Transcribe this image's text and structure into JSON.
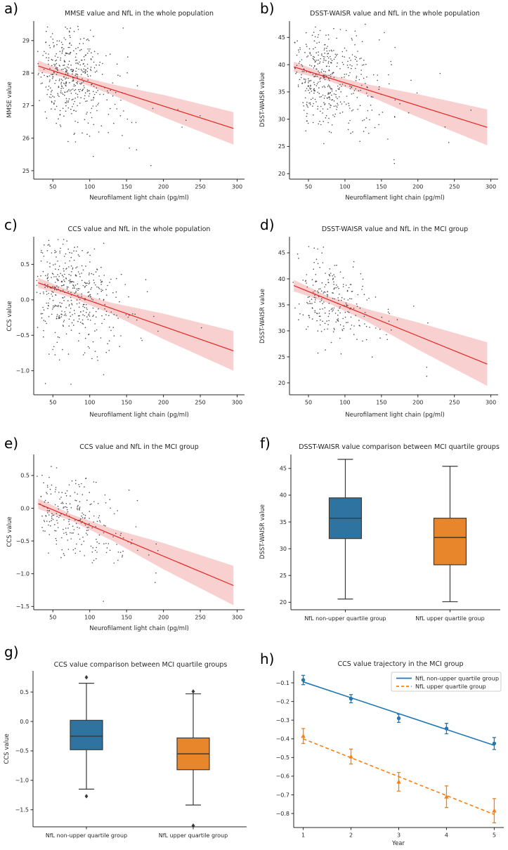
{
  "colors": {
    "background": "#ffffff",
    "regression_line": "#e42420",
    "ci_band": "#f8d0d0",
    "scatter_point": "#3b3b3b",
    "box_blue": "#2f74a0",
    "box_orange": "#e8862c",
    "traj_blue": "#1f77b4",
    "traj_orange": "#ff7f0e",
    "axis": "#262626",
    "legend_border": "#cccccc"
  },
  "chart_data": [
    {
      "panel": "a)",
      "type": "scatter-regression",
      "title": "MMSE value and NfL in the whole population",
      "xlabel": "Neurofilament light chain (pg/ml)",
      "ylabel": "MMSE value",
      "xlim": [
        24,
        310
      ],
      "ylim": [
        24.74,
        29.6
      ],
      "xtick_values": [
        50,
        100,
        150,
        200,
        250,
        300
      ],
      "xtick_labels": [
        "50",
        "100",
        "150",
        "200",
        "250",
        "300"
      ],
      "ytick_values": [
        25,
        26,
        27,
        28,
        29
      ],
      "ytick_labels": [
        "25",
        "26",
        "27",
        "28",
        "29"
      ],
      "regression": {
        "x": [
          30,
          295
        ],
        "y": [
          28.22,
          26.3
        ]
      },
      "ci": {
        "x": [
          30,
          75,
          130,
          200,
          295
        ],
        "half_width": [
          0.17,
          0.08,
          0.16,
          0.34,
          0.5
        ]
      },
      "scatter": {
        "n": 440,
        "seed": 3,
        "x_log_mu": 4.33,
        "x_log_sigma": 0.4,
        "x_min": 28,
        "x_max": 298,
        "y_noise_sd": 0.73,
        "y_min": 24.95,
        "y_max": 29.45
      }
    },
    {
      "panel": "b)",
      "type": "scatter-regression",
      "title": "DSST-WAISR value and NfL in the whole population",
      "xlabel": "Neurofilament light chain (pg/ml)",
      "ylabel": "DSST-WAISR value",
      "xlim": [
        24,
        310
      ],
      "ylim": [
        19.0,
        48.0
      ],
      "xtick_values": [
        50,
        100,
        150,
        200,
        250,
        300
      ],
      "xtick_labels": [
        "50",
        "100",
        "150",
        "200",
        "250",
        "300"
      ],
      "ytick_values": [
        20,
        25,
        30,
        35,
        40,
        45
      ],
      "ytick_labels": [
        "20",
        "25",
        "30",
        "35",
        "40",
        "45"
      ],
      "regression": {
        "x": [
          30,
          295
        ],
        "y": [
          39.6,
          28.5
        ]
      },
      "ci": {
        "x": [
          30,
          75,
          130,
          200,
          295
        ],
        "half_width": [
          0.95,
          0.55,
          1.0,
          2.1,
          3.3
        ]
      },
      "scatter": {
        "n": 440,
        "seed": 5,
        "x_log_mu": 4.33,
        "x_log_sigma": 0.4,
        "x_min": 28,
        "x_max": 298,
        "y_noise_sd": 4.3,
        "y_min": 20.7,
        "y_max": 47.5
      }
    },
    {
      "panel": "c)",
      "type": "scatter-regression",
      "title": "CCS value and NfL in the whole population",
      "xlabel": "Neurofilament light chain (pg/ml)",
      "ylabel": "CCS value",
      "xlim": [
        24,
        310
      ],
      "ylim": [
        -1.34,
        0.89
      ],
      "xtick_values": [
        50,
        100,
        150,
        200,
        250,
        300
      ],
      "xtick_labels": [
        "50",
        "100",
        "150",
        "200",
        "250",
        "300"
      ],
      "ytick_values": [
        -1.0,
        -0.5,
        0.0,
        0.5
      ],
      "ytick_labels": [
        "−1.0",
        "−0.5",
        "0.0",
        "0.5"
      ],
      "regression": {
        "x": [
          30,
          295
        ],
        "y": [
          0.24,
          -0.72
        ]
      },
      "ci": {
        "x": [
          30,
          75,
          130,
          200,
          295
        ],
        "half_width": [
          0.07,
          0.045,
          0.08,
          0.18,
          0.28
        ]
      },
      "scatter": {
        "n": 440,
        "seed": 9,
        "x_log_mu": 4.33,
        "x_log_sigma": 0.4,
        "x_min": 28,
        "x_max": 298,
        "y_noise_sd": 0.38,
        "y_min": -1.27,
        "y_max": 0.88
      }
    },
    {
      "panel": "d)",
      "type": "scatter-regression",
      "title": "DSST-WAISR value and NfL in the MCI group",
      "xlabel": "Neurofilament light chain (pg/ml)",
      "ylabel": "DSST-WAISR value",
      "xlim": [
        24,
        310
      ],
      "ylim": [
        17.7,
        48.1
      ],
      "xtick_values": [
        50,
        100,
        150,
        200,
        250,
        300
      ],
      "xtick_labels": [
        "50",
        "100",
        "150",
        "200",
        "250",
        "300"
      ],
      "ytick_values": [
        20,
        25,
        30,
        35,
        40,
        45
      ],
      "ytick_labels": [
        "20",
        "25",
        "30",
        "35",
        "40",
        "45"
      ],
      "regression": {
        "x": [
          30,
          295
        ],
        "y": [
          38.7,
          23.6
        ]
      },
      "ci": {
        "x": [
          30,
          75,
          130,
          200,
          295
        ],
        "half_width": [
          1.1,
          0.65,
          1.2,
          2.6,
          4.2
        ]
      },
      "scatter": {
        "n": 250,
        "seed": 13,
        "x_log_mu": 4.33,
        "x_log_sigma": 0.4,
        "x_min": 28,
        "x_max": 298,
        "y_noise_sd": 4.0,
        "y_min": 18.4,
        "y_max": 46.6
      }
    },
    {
      "panel": "e)",
      "type": "scatter-regression",
      "title": "CCS value and NfL in the MCI group",
      "xlabel": "Neurofilament light chain (pg/ml)",
      "ylabel": "CCS value",
      "xlim": [
        24,
        310
      ],
      "ylim": [
        -1.55,
        0.82
      ],
      "xtick_values": [
        50,
        100,
        150,
        200,
        250,
        300
      ],
      "xtick_labels": [
        "50",
        "100",
        "150",
        "200",
        "250",
        "300"
      ],
      "ytick_values": [
        -1.5,
        -1.0,
        -0.5,
        0.0,
        0.5
      ],
      "ytick_labels": [
        "−1.5",
        "−1.0",
        "−0.5",
        "0.0",
        "0.5"
      ],
      "regression": {
        "x": [
          30,
          295
        ],
        "y": [
          0.07,
          -1.18
        ]
      },
      "ci": {
        "x": [
          30,
          75,
          130,
          200,
          295
        ],
        "half_width": [
          0.08,
          0.05,
          0.09,
          0.2,
          0.3
        ]
      },
      "scatter": {
        "n": 250,
        "seed": 17,
        "x_log_mu": 4.33,
        "x_log_sigma": 0.4,
        "x_min": 28,
        "x_max": 298,
        "y_noise_sd": 0.34,
        "y_min": -1.44,
        "y_max": 0.78
      }
    },
    {
      "panel": "f)",
      "type": "box",
      "title": "DSST-WAISR value comparison between MCI quartile groups",
      "ylabel": "DSST-WAISR value",
      "categories": [
        "NfL non-upper quartile group",
        "NfL upper quartile group"
      ],
      "ylim": [
        18.6,
        47.6
      ],
      "ytick_values": [
        20,
        25,
        30,
        35,
        40,
        45
      ],
      "ytick_labels": [
        "20",
        "25",
        "30",
        "35",
        "40",
        "45"
      ],
      "boxes": [
        {
          "group": "NfL non-upper quartile group",
          "color": "#2f74a0",
          "whisker_low": 20.6,
          "q1": 31.9,
          "median": 35.7,
          "q3": 39.5,
          "whisker_high": 46.7,
          "outliers": []
        },
        {
          "group": "NfL upper quartile group",
          "color": "#e8862c",
          "whisker_low": 20.1,
          "q1": 27.0,
          "median": 32.1,
          "q3": 35.7,
          "whisker_high": 45.4,
          "outliers": []
        }
      ]
    },
    {
      "panel": "g)",
      "type": "box",
      "title": "CCS value comparison between MCI quartile groups",
      "ylabel": "CCS value",
      "categories": [
        "NfL non-upper quartile group",
        "NfL upper quartile group"
      ],
      "ylim": [
        -1.79,
        0.86
      ],
      "ytick_values": [
        0.5,
        0.0,
        -0.5,
        -1.0,
        -1.5
      ],
      "ytick_labels": [
        "0.5",
        "0.0",
        "−0.5",
        "−1.0",
        "−1.5"
      ],
      "boxes": [
        {
          "group": "NfL non-upper quartile group",
          "color": "#2f74a0",
          "whisker_low": -1.15,
          "q1": -0.48,
          "median": -0.25,
          "q3": 0.02,
          "whisker_high": 0.65,
          "outliers": [
            0.75,
            -1.27
          ]
        },
        {
          "group": "NfL upper quartile group",
          "color": "#e8862c",
          "whisker_low": -1.42,
          "q1": -0.82,
          "median": -0.55,
          "q3": -0.28,
          "whisker_high": 0.47,
          "outliers": [
            0.51,
            -1.77
          ]
        }
      ]
    },
    {
      "panel": "h)",
      "type": "trajectory",
      "title": "CCS value trajectory in the MCI group",
      "xlabel": "Year",
      "xlim": [
        0.8,
        5.2
      ],
      "ylim": [
        -0.875,
        -0.036
      ],
      "xtick_values": [
        1,
        2,
        3,
        4,
        5
      ],
      "xtick_labels": [
        "1",
        "2",
        "3",
        "4",
        "5"
      ],
      "ytick_values": [
        -0.1,
        -0.2,
        -0.3,
        -0.4,
        -0.5,
        -0.6,
        -0.7,
        -0.8
      ],
      "ytick_labels": [
        "−0.1",
        "−0.2",
        "−0.3",
        "−0.4",
        "−0.5",
        "−0.6",
        "−0.7",
        "−0.8"
      ],
      "x": [
        1,
        2,
        3,
        4,
        5
      ],
      "series": [
        {
          "name": "NfL non-upper quartile group",
          "color": "#1f77b4",
          "linestyle": "solid",
          "marker": "circle",
          "values": [
            -0.085,
            -0.185,
            -0.29,
            -0.345,
            -0.425
          ],
          "errors": [
            0.025,
            0.022,
            0.022,
            0.028,
            0.032
          ],
          "trend": {
            "x": [
              1,
              5
            ],
            "y": [
              -0.095,
              -0.435
            ]
          }
        },
        {
          "name": "NfL upper quartile group",
          "color": "#ff7f0e",
          "linestyle": "dashed",
          "marker": "triangle",
          "values": [
            -0.385,
            -0.495,
            -0.63,
            -0.71,
            -0.785
          ],
          "errors": [
            0.04,
            0.04,
            0.05,
            0.058,
            0.065
          ],
          "trend": {
            "x": [
              1,
              5
            ],
            "y": [
              -0.4,
              -0.805
            ]
          }
        }
      ],
      "legend_position": "upper right"
    }
  ]
}
